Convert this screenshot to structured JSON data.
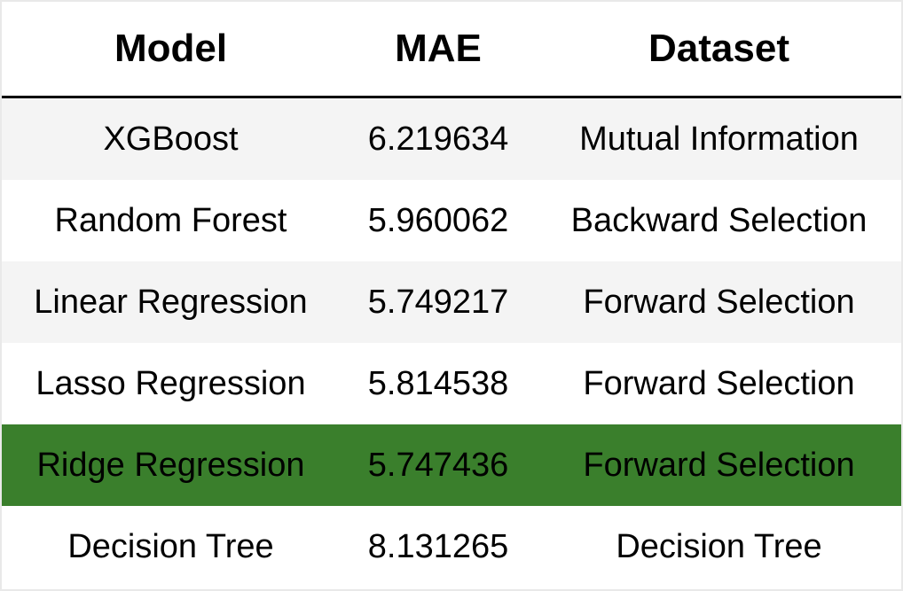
{
  "chart_data": {
    "type": "table",
    "columns": [
      "Model",
      "MAE",
      "Dataset"
    ],
    "rows": [
      {
        "model": "XGBoost",
        "mae": "6.219634",
        "dataset": "Mutual Information"
      },
      {
        "model": "Random Forest",
        "mae": "5.960062",
        "dataset": "Backward Selection"
      },
      {
        "model": "Linear Regression",
        "mae": "5.749217",
        "dataset": "Forward Selection"
      },
      {
        "model": "Lasso Regression",
        "mae": "5.814538",
        "dataset": "Forward Selection"
      },
      {
        "model": "Ridge Regression",
        "mae": "5.747436",
        "dataset": "Forward Selection"
      },
      {
        "model": "Decision Tree",
        "mae": "8.131265",
        "dataset": "Decision Tree"
      }
    ],
    "highlighted_row_index": 4,
    "colors": {
      "highlight": "#3a7f2c",
      "stripe": "#f4f4f4",
      "background": "#ffffff",
      "header_rule": "#000000"
    }
  }
}
